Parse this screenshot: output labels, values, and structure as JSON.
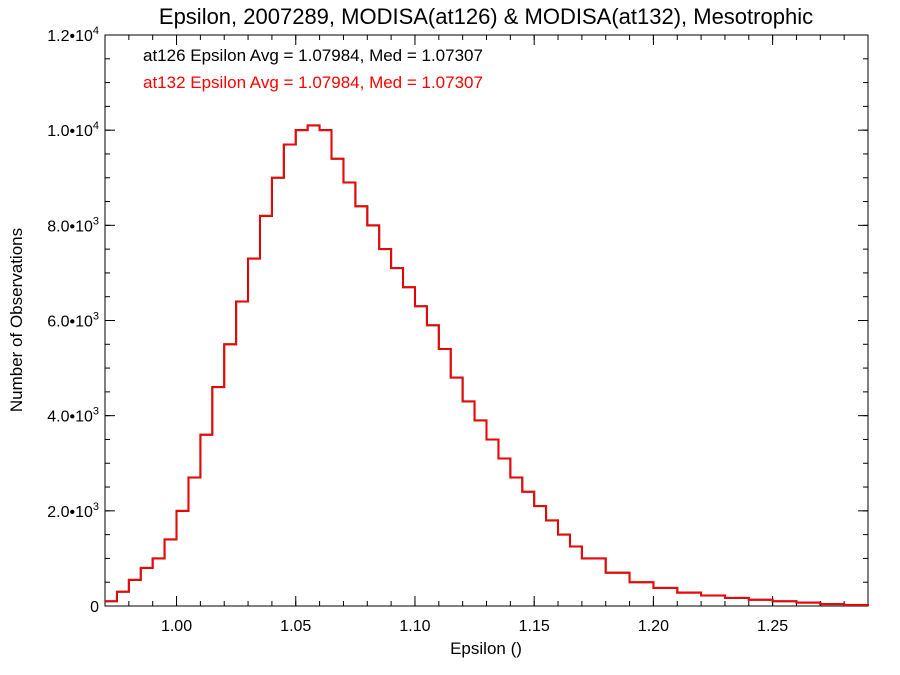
{
  "chart_data": {
    "type": "line",
    "style": "step",
    "title": "Epsilon, 2007289, MODISA(at126) & MODISA(at132), Mesotrophic",
    "xlabel": "Epsilon ()",
    "ylabel": "Number of Observations",
    "xlim": [
      0.97,
      1.29
    ],
    "ylim": [
      0,
      12000
    ],
    "x_ticks": [
      1.0,
      1.05,
      1.1,
      1.15,
      1.2,
      1.25
    ],
    "x_tick_labels": [
      "1.00",
      "1.05",
      "1.10",
      "1.15",
      "1.20",
      "1.25"
    ],
    "y_ticks": [
      {
        "value": 0,
        "mantissa": "0",
        "exp": ""
      },
      {
        "value": 2000,
        "mantissa": "2.0•10",
        "exp": "3"
      },
      {
        "value": 4000,
        "mantissa": "4.0•10",
        "exp": "3"
      },
      {
        "value": 6000,
        "mantissa": "6.0•10",
        "exp": "3"
      },
      {
        "value": 8000,
        "mantissa": "8.0•10",
        "exp": "3"
      },
      {
        "value": 10000,
        "mantissa": "1.0•10",
        "exp": "4"
      },
      {
        "value": 12000,
        "mantissa": "1.2•10",
        "exp": "4"
      }
    ],
    "annotations": [
      {
        "text": "at126 Epsilon Avg = 1.07984, Med = 1.07307",
        "color": "#000000"
      },
      {
        "text": "at132 Epsilon Avg = 1.07984, Med = 1.07307",
        "color": "#ff0000"
      }
    ],
    "series": [
      {
        "color": "#000000",
        "x": [
          0.97,
          0.975,
          0.98,
          0.985,
          0.99,
          0.995,
          1.0,
          1.005,
          1.01,
          1.015,
          1.02,
          1.025,
          1.03,
          1.035,
          1.04,
          1.045,
          1.05,
          1.055,
          1.06,
          1.065,
          1.07,
          1.075,
          1.08,
          1.085,
          1.09,
          1.095,
          1.1,
          1.105,
          1.11,
          1.115,
          1.12,
          1.125,
          1.13,
          1.135,
          1.14,
          1.145,
          1.15,
          1.155,
          1.16,
          1.165,
          1.17,
          1.18,
          1.19,
          1.2,
          1.21,
          1.22,
          1.23,
          1.24,
          1.25,
          1.26,
          1.27,
          1.28,
          1.29
        ],
        "y": [
          100,
          300,
          550,
          800,
          1000,
          1400,
          2000,
          2700,
          3600,
          4600,
          5500,
          6400,
          7300,
          8200,
          9000,
          9700,
          10000,
          10100,
          10000,
          9400,
          8900,
          8400,
          8000,
          7500,
          7100,
          6700,
          6300,
          5900,
          5400,
          4800,
          4300,
          3900,
          3500,
          3100,
          2700,
          2400,
          2100,
          1800,
          1500,
          1250,
          1000,
          700,
          500,
          380,
          280,
          220,
          170,
          130,
          100,
          70,
          40,
          20,
          0
        ]
      },
      {
        "color": "#ff0000",
        "x": [
          0.97,
          0.975,
          0.98,
          0.985,
          0.99,
          0.995,
          1.0,
          1.005,
          1.01,
          1.015,
          1.02,
          1.025,
          1.03,
          1.035,
          1.04,
          1.045,
          1.05,
          1.055,
          1.06,
          1.065,
          1.07,
          1.075,
          1.08,
          1.085,
          1.09,
          1.095,
          1.1,
          1.105,
          1.11,
          1.115,
          1.12,
          1.125,
          1.13,
          1.135,
          1.14,
          1.145,
          1.15,
          1.155,
          1.16,
          1.165,
          1.17,
          1.18,
          1.19,
          1.2,
          1.21,
          1.22,
          1.23,
          1.24,
          1.25,
          1.26,
          1.27,
          1.28,
          1.29
        ],
        "y": [
          100,
          300,
          550,
          800,
          1000,
          1400,
          2000,
          2700,
          3600,
          4600,
          5500,
          6400,
          7300,
          8200,
          9000,
          9700,
          10000,
          10100,
          10000,
          9400,
          8900,
          8400,
          8000,
          7500,
          7100,
          6700,
          6300,
          5900,
          5400,
          4800,
          4300,
          3900,
          3500,
          3100,
          2700,
          2400,
          2100,
          1800,
          1500,
          1250,
          1000,
          700,
          500,
          380,
          280,
          220,
          170,
          130,
          100,
          70,
          40,
          20,
          0
        ]
      }
    ]
  }
}
